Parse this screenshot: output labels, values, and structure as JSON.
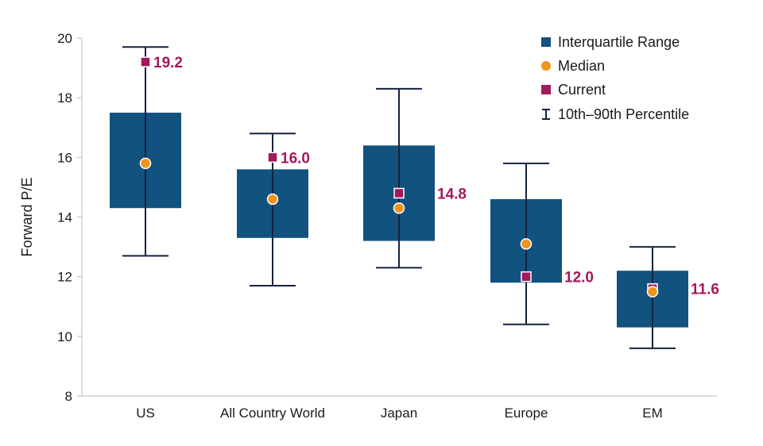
{
  "chart_data": {
    "type": "box",
    "ylabel": "Forward P/E",
    "xlabel": "",
    "ylim": [
      8,
      20
    ],
    "yticks": [
      8,
      10,
      12,
      14,
      16,
      18,
      20
    ],
    "grid": false,
    "legend_position": "top-right",
    "categories": [
      "US",
      "All Country World",
      "Japan",
      "Europe",
      "EM"
    ],
    "series": [
      {
        "category": "US",
        "p10": 12.7,
        "q1": 14.3,
        "median": 15.8,
        "q3": 17.5,
        "p90": 19.7,
        "current": 19.2,
        "current_label": "19.2"
      },
      {
        "category": "All Country World",
        "p10": 11.7,
        "q1": 13.3,
        "median": 14.6,
        "q3": 15.6,
        "p90": 16.8,
        "current": 16.0,
        "current_label": "16.0"
      },
      {
        "category": "Japan",
        "p10": 12.3,
        "q1": 13.2,
        "median": 14.3,
        "q3": 16.4,
        "p90": 18.3,
        "current": 14.8,
        "current_label": "14.8"
      },
      {
        "category": "Europe",
        "p10": 10.4,
        "q1": 11.8,
        "median": 13.1,
        "q3": 14.6,
        "p90": 15.8,
        "current": 12.0,
        "current_label": "12.0"
      },
      {
        "category": "EM",
        "p10": 9.6,
        "q1": 10.3,
        "median": 11.5,
        "q3": 12.2,
        "p90": 13.0,
        "current": 11.6,
        "current_label": "11.6"
      }
    ],
    "legend": [
      {
        "key": "iqr",
        "label": "Interquartile Range"
      },
      {
        "key": "median",
        "label": "Median"
      },
      {
        "key": "current",
        "label": "Current"
      },
      {
        "key": "whisker",
        "label": "10th–90th Percentile"
      }
    ],
    "colors": {
      "box": "#12527f",
      "median": "#f0941c",
      "current": "#a3195b",
      "whisker": "#13233f",
      "axis": "#c8c8c8"
    }
  }
}
